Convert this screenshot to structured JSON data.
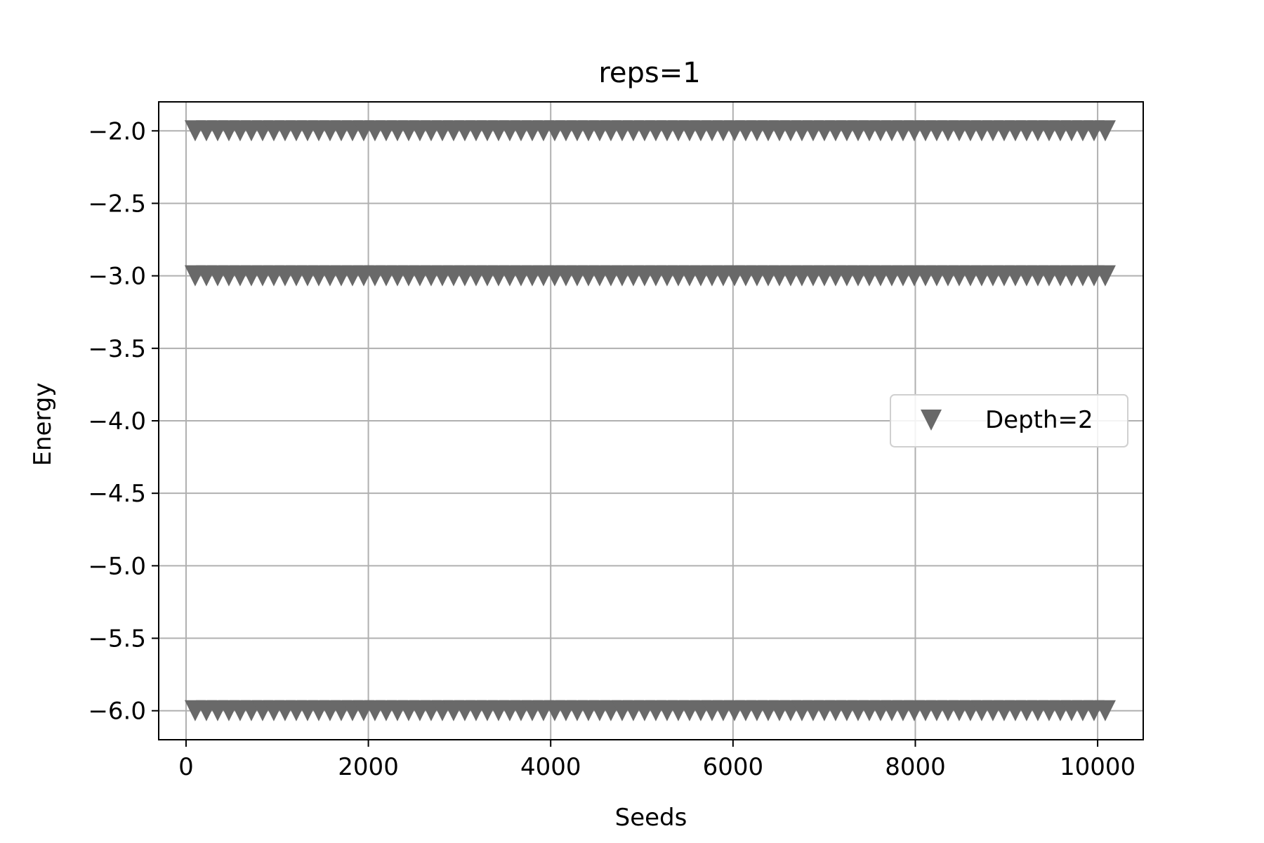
{
  "chart_data": {
    "type": "scatter",
    "title": "reps=1",
    "xlabel": "Seeds",
    "ylabel": "Energy",
    "xlim": [
      -300,
      10500
    ],
    "ylim": [
      -6.2,
      -1.8
    ],
    "xticks": [
      0,
      2000,
      4000,
      6000,
      8000,
      10000
    ],
    "xtick_labels": [
      "0",
      "2000",
      "4000",
      "6000",
      "8000",
      "10000"
    ],
    "yticks": [
      -2.0,
      -2.5,
      -3.0,
      -3.5,
      -4.0,
      -4.5,
      -5.0,
      -5.5,
      -6.0
    ],
    "ytick_labels": [
      "−2.0",
      "−2.5",
      "−3.0",
      "−3.5",
      "−4.0",
      "−4.5",
      "−5.0",
      "−5.5",
      "−6.0"
    ],
    "grid": true,
    "legend_position": "center-right",
    "series": [
      {
        "name": "Depth=2",
        "marker": "triangle-down",
        "color": "#696969",
        "x_range": [
          100,
          10100
        ],
        "levels": [
          -2.0,
          -3.0,
          -6.0
        ]
      }
    ]
  }
}
